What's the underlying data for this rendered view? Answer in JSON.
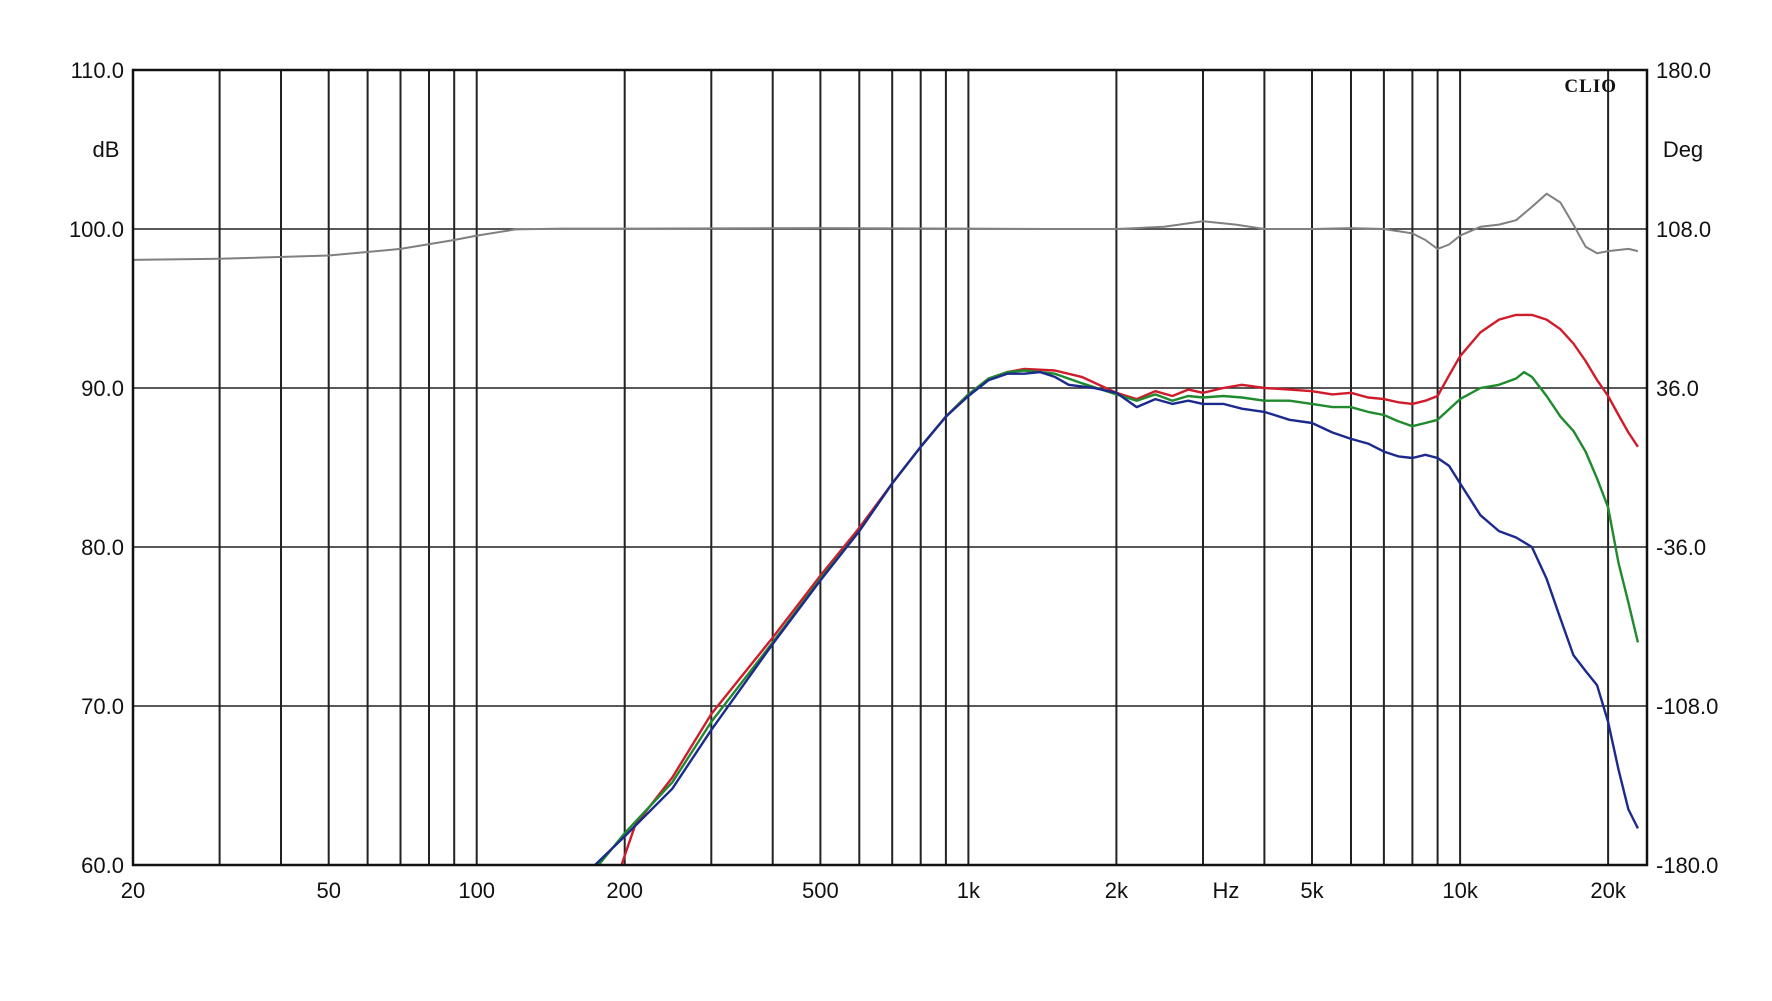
{
  "chart_data": {
    "type": "line",
    "brand": "CLIO",
    "x_scale": "log",
    "xlim": [
      20,
      24000
    ],
    "ylim": [
      60,
      110
    ],
    "y2lim": [
      -180,
      180
    ],
    "grid": true,
    "x_unit_label": "Hz",
    "y_left_unit_label": "dB",
    "y_right_unit_label": "Deg",
    "x_ticks": [
      {
        "value": 20,
        "label": "20"
      },
      {
        "value": 50,
        "label": "50"
      },
      {
        "value": 100,
        "label": "100"
      },
      {
        "value": 200,
        "label": "200"
      },
      {
        "value": 500,
        "label": "500"
      },
      {
        "value": 1000,
        "label": "1k"
      },
      {
        "value": 2000,
        "label": "2k"
      },
      {
        "value": 5000,
        "label": "5k"
      },
      {
        "value": 10000,
        "label": "10k"
      },
      {
        "value": 20000,
        "label": "20k"
      }
    ],
    "x_gridlines": [
      20,
      30,
      40,
      50,
      60,
      70,
      80,
      90,
      100,
      200,
      300,
      400,
      500,
      600,
      700,
      800,
      900,
      1000,
      2000,
      3000,
      4000,
      5000,
      6000,
      7000,
      8000,
      9000,
      10000,
      20000
    ],
    "y_ticks_left": [
      {
        "value": 60,
        "label": "60.0"
      },
      {
        "value": 70,
        "label": "70.0"
      },
      {
        "value": 80,
        "label": "80.0"
      },
      {
        "value": 90,
        "label": "90.0"
      },
      {
        "value": 100,
        "label": "100.0"
      },
      {
        "value": 110,
        "label": "110.0"
      }
    ],
    "y_ticks_right": [
      {
        "value": -180,
        "label": "-180.0"
      },
      {
        "value": -108,
        "label": "-108.0"
      },
      {
        "value": -36,
        "label": "-36.0"
      },
      {
        "value": 36,
        "label": "36.0"
      },
      {
        "value": 108,
        "label": "108.0"
      },
      {
        "value": 180,
        "label": "180.0"
      }
    ],
    "series": [
      {
        "color": "#d01c2a",
        "points": [
          [
            197,
            60
          ],
          [
            210,
            62.5
          ],
          [
            250,
            65.5
          ],
          [
            300,
            69.5
          ],
          [
            400,
            74.3
          ],
          [
            500,
            78.2
          ],
          [
            600,
            81.2
          ],
          [
            700,
            84
          ],
          [
            800,
            86.3
          ],
          [
            900,
            88.2
          ],
          [
            1000,
            89.6
          ],
          [
            1100,
            90.6
          ],
          [
            1200,
            91
          ],
          [
            1300,
            91.2
          ],
          [
            1500,
            91.1
          ],
          [
            1700,
            90.7
          ],
          [
            2000,
            89.7
          ],
          [
            2200,
            89.3
          ],
          [
            2400,
            89.8
          ],
          [
            2600,
            89.5
          ],
          [
            2800,
            89.9
          ],
          [
            3000,
            89.7
          ],
          [
            3300,
            90
          ],
          [
            3600,
            90.2
          ],
          [
            4000,
            90
          ],
          [
            4500,
            89.9
          ],
          [
            5000,
            89.8
          ],
          [
            5500,
            89.6
          ],
          [
            6000,
            89.7
          ],
          [
            6500,
            89.4
          ],
          [
            7000,
            89.3
          ],
          [
            7500,
            89.1
          ],
          [
            8000,
            89
          ],
          [
            8500,
            89.2
          ],
          [
            9000,
            89.5
          ],
          [
            9500,
            90.8
          ],
          [
            10000,
            92
          ],
          [
            11000,
            93.5
          ],
          [
            12000,
            94.3
          ],
          [
            13000,
            94.6
          ],
          [
            14000,
            94.6
          ],
          [
            15000,
            94.3
          ],
          [
            16000,
            93.7
          ],
          [
            17000,
            92.8
          ],
          [
            18000,
            91.7
          ],
          [
            19000,
            90.5
          ],
          [
            20000,
            89.5
          ],
          [
            21000,
            88.3
          ],
          [
            22000,
            87.2
          ],
          [
            23000,
            86.3
          ]
        ]
      },
      {
        "color": "#1f8a2e",
        "points": [
          [
            177,
            60
          ],
          [
            200,
            62
          ],
          [
            250,
            65.2
          ],
          [
            300,
            69
          ],
          [
            400,
            74
          ],
          [
            500,
            78
          ],
          [
            600,
            81
          ],
          [
            700,
            84
          ],
          [
            800,
            86.3
          ],
          [
            900,
            88.2
          ],
          [
            1000,
            89.6
          ],
          [
            1100,
            90.6
          ],
          [
            1200,
            91
          ],
          [
            1300,
            91.1
          ],
          [
            1500,
            90.9
          ],
          [
            1700,
            90.3
          ],
          [
            2000,
            89.6
          ],
          [
            2200,
            89.2
          ],
          [
            2400,
            89.6
          ],
          [
            2600,
            89.2
          ],
          [
            2800,
            89.5
          ],
          [
            3000,
            89.4
          ],
          [
            3300,
            89.5
          ],
          [
            3600,
            89.4
          ],
          [
            4000,
            89.2
          ],
          [
            4500,
            89.2
          ],
          [
            5000,
            89
          ],
          [
            5500,
            88.8
          ],
          [
            6000,
            88.8
          ],
          [
            6500,
            88.5
          ],
          [
            7000,
            88.3
          ],
          [
            7500,
            87.9
          ],
          [
            8000,
            87.6
          ],
          [
            8500,
            87.8
          ],
          [
            9000,
            88
          ],
          [
            10000,
            89.3
          ],
          [
            11000,
            90
          ],
          [
            12000,
            90.2
          ],
          [
            13000,
            90.6
          ],
          [
            13500,
            91
          ],
          [
            14000,
            90.7
          ],
          [
            15000,
            89.5
          ],
          [
            16000,
            88.2
          ],
          [
            17000,
            87.3
          ],
          [
            18000,
            86
          ],
          [
            19000,
            84.3
          ],
          [
            20000,
            82.5
          ],
          [
            21000,
            79
          ],
          [
            22000,
            76.5
          ],
          [
            23000,
            74
          ]
        ]
      },
      {
        "color": "#1b2a8c",
        "points": [
          [
            174,
            60
          ],
          [
            200,
            61.8
          ],
          [
            250,
            64.8
          ],
          [
            300,
            68.5
          ],
          [
            400,
            73.9
          ],
          [
            500,
            77.9
          ],
          [
            600,
            81
          ],
          [
            700,
            84
          ],
          [
            800,
            86.3
          ],
          [
            900,
            88.2
          ],
          [
            1000,
            89.5
          ],
          [
            1100,
            90.5
          ],
          [
            1200,
            90.9
          ],
          [
            1300,
            90.9
          ],
          [
            1400,
            91
          ],
          [
            1500,
            90.7
          ],
          [
            1600,
            90.2
          ],
          [
            1800,
            90
          ],
          [
            2000,
            89.7
          ],
          [
            2200,
            88.8
          ],
          [
            2400,
            89.3
          ],
          [
            2600,
            89
          ],
          [
            2800,
            89.2
          ],
          [
            3000,
            89
          ],
          [
            3300,
            89
          ],
          [
            3600,
            88.7
          ],
          [
            4000,
            88.5
          ],
          [
            4500,
            88
          ],
          [
            5000,
            87.8
          ],
          [
            5500,
            87.2
          ],
          [
            6000,
            86.8
          ],
          [
            6500,
            86.5
          ],
          [
            7000,
            86
          ],
          [
            7500,
            85.7
          ],
          [
            8000,
            85.6
          ],
          [
            8500,
            85.8
          ],
          [
            9000,
            85.6
          ],
          [
            9500,
            85.1
          ],
          [
            10000,
            84
          ],
          [
            11000,
            82
          ],
          [
            12000,
            81
          ],
          [
            13000,
            80.6
          ],
          [
            14000,
            80
          ],
          [
            15000,
            78
          ],
          [
            16000,
            75.5
          ],
          [
            17000,
            73.2
          ],
          [
            18000,
            72.2
          ],
          [
            19000,
            71.3
          ],
          [
            20000,
            69
          ],
          [
            21000,
            66
          ],
          [
            22000,
            63.5
          ],
          [
            23000,
            62.3
          ]
        ]
      },
      {
        "color": "#808080",
        "axis": "right",
        "points": [
          [
            20,
            94
          ],
          [
            30,
            94.5
          ],
          [
            50,
            96
          ],
          [
            70,
            99
          ],
          [
            90,
            103
          ],
          [
            100,
            105
          ],
          [
            120,
            107.8
          ],
          [
            150,
            108.2
          ],
          [
            200,
            108.2
          ],
          [
            500,
            108.4
          ],
          [
            1000,
            108.2
          ],
          [
            1500,
            108
          ],
          [
            2000,
            108
          ],
          [
            2500,
            109
          ],
          [
            3000,
            111.5
          ],
          [
            3500,
            110
          ],
          [
            4000,
            108
          ],
          [
            5000,
            108
          ],
          [
            6000,
            108.4
          ],
          [
            7000,
            108
          ],
          [
            8000,
            106
          ],
          [
            8500,
            103
          ],
          [
            9000,
            99
          ],
          [
            9500,
            101
          ],
          [
            10000,
            105
          ],
          [
            11000,
            109
          ],
          [
            12000,
            110
          ],
          [
            13000,
            112
          ],
          [
            14000,
            118
          ],
          [
            15000,
            124
          ],
          [
            16000,
            120
          ],
          [
            17000,
            110
          ],
          [
            18000,
            100
          ],
          [
            19000,
            97
          ],
          [
            20000,
            98
          ],
          [
            22000,
            99
          ],
          [
            23000,
            98
          ]
        ]
      }
    ]
  }
}
